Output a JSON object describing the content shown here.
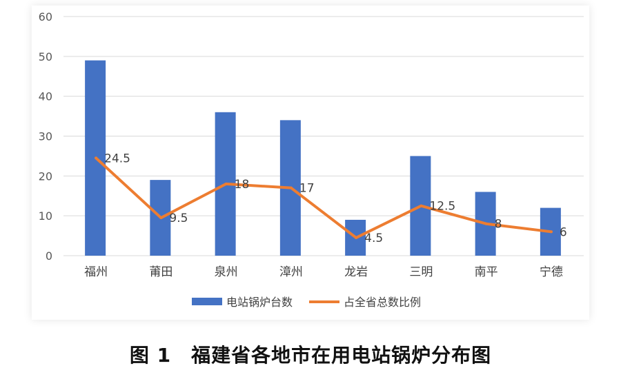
{
  "caption": "图 1　福建省各地市在用电站锅炉分布图",
  "colors": {
    "bar": "#4472C4",
    "line": "#ED7D31",
    "grid": "#D9D9D9",
    "text": "#404040"
  },
  "chart_data": {
    "type": "bar",
    "categories": [
      "福州",
      "莆田",
      "泉州",
      "漳州",
      "龙岩",
      "三明",
      "南平",
      "宁德"
    ],
    "series": [
      {
        "name": "电站锅炉台数",
        "type": "bar",
        "values": [
          49,
          19,
          36,
          34,
          9,
          25,
          16,
          12
        ]
      },
      {
        "name": "占全省总数比例",
        "type": "line",
        "values": [
          24.5,
          9.5,
          18,
          17,
          4.5,
          12.5,
          8,
          6
        ],
        "data_labels": [
          "24.5",
          "9.5",
          "18",
          "17",
          "4.5",
          "12.5",
          "8",
          "6"
        ]
      }
    ],
    "y_ticks": [
      "0",
      "10",
      "20",
      "30",
      "40",
      "50",
      "60"
    ],
    "ylim": [
      0,
      60
    ],
    "grid": true,
    "legend_position": "bottom"
  }
}
